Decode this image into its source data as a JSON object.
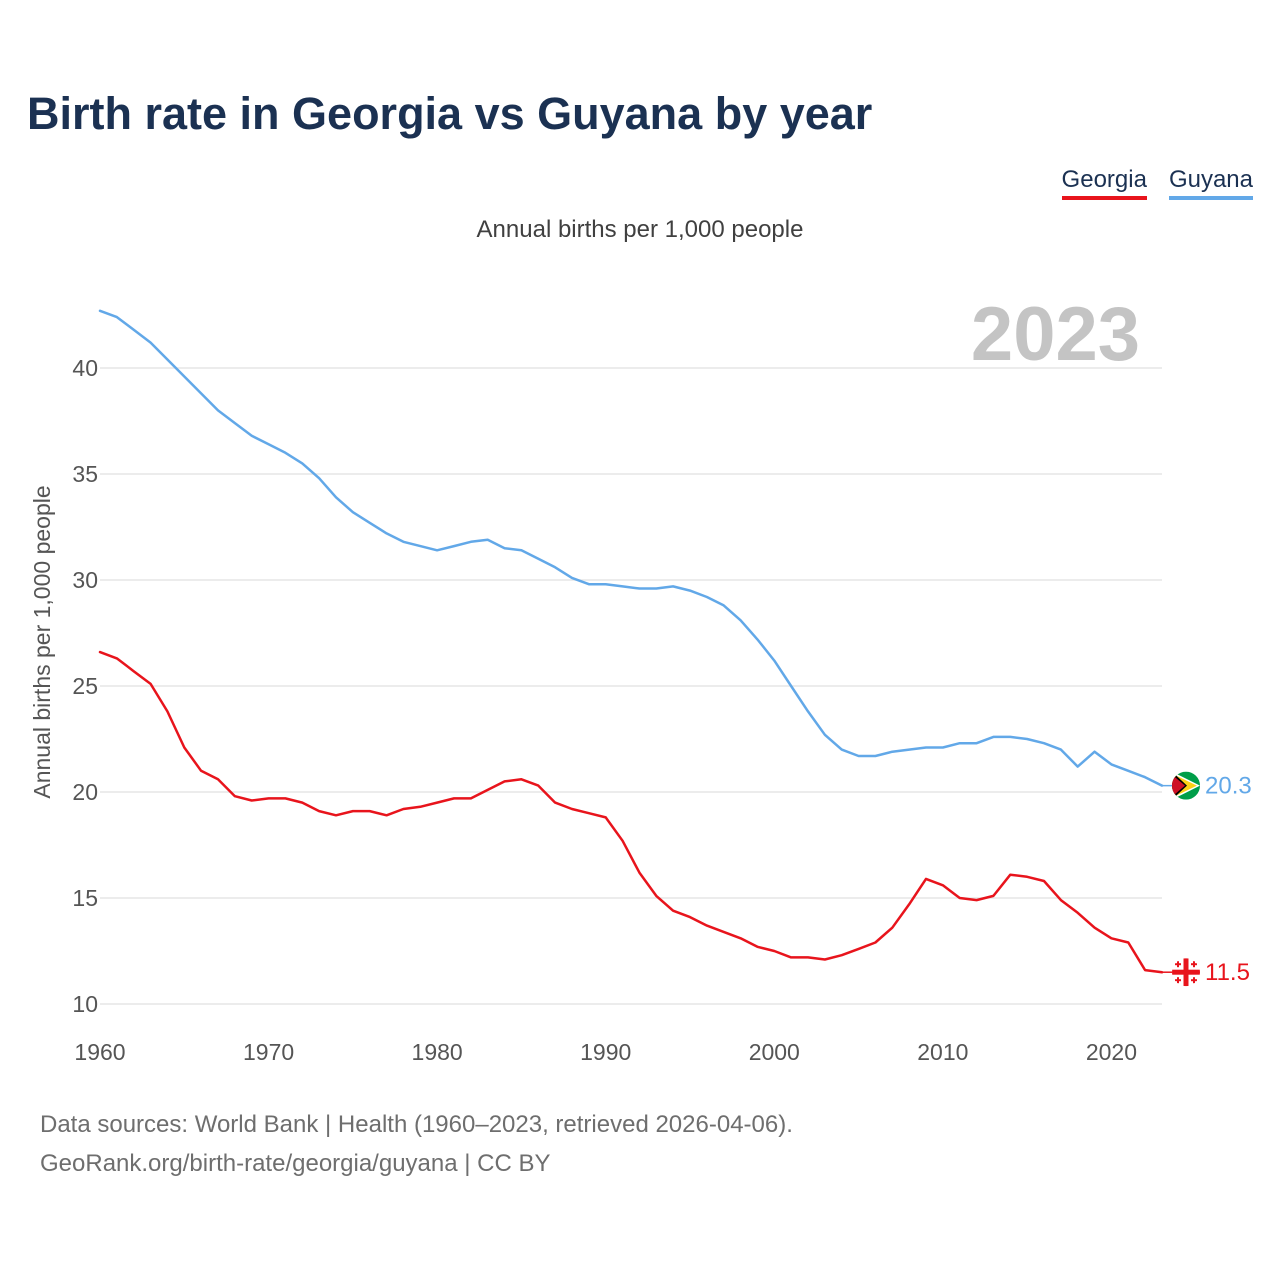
{
  "title": "Birth rate in Georgia vs Guyana by year",
  "subtitle": "Annual births per 1,000 people",
  "legend": [
    {
      "label": "Georgia",
      "color": "#e8141c"
    },
    {
      "label": "Guyana",
      "color": "#62a8e8"
    }
  ],
  "year_label": "2023",
  "footer": {
    "line1": "Data sources: World Bank | Health (1960–2023, retrieved 2026-04-06).",
    "line2": "GeoRank.org/birth-rate/georgia/guyana | CC BY"
  },
  "chart_data": {
    "type": "line",
    "title": "Birth rate in Georgia vs Guyana by year",
    "ylabel": "Annual births per 1,000 people",
    "xlabel": "",
    "xlim": [
      1960,
      2023
    ],
    "ylim": [
      10,
      43
    ],
    "yticks": [
      10,
      15,
      20,
      25,
      30,
      35,
      40
    ],
    "xticks": [
      1960,
      1970,
      1980,
      1990,
      2000,
      2010,
      2020
    ],
    "grid": true,
    "x": [
      1960,
      1961,
      1962,
      1963,
      1964,
      1965,
      1966,
      1967,
      1968,
      1969,
      1970,
      1971,
      1972,
      1973,
      1974,
      1975,
      1976,
      1977,
      1978,
      1979,
      1980,
      1981,
      1982,
      1983,
      1984,
      1985,
      1986,
      1987,
      1988,
      1989,
      1990,
      1991,
      1992,
      1993,
      1994,
      1995,
      1996,
      1997,
      1998,
      1999,
      2000,
      2001,
      2002,
      2003,
      2004,
      2005,
      2006,
      2007,
      2008,
      2009,
      2010,
      2011,
      2012,
      2013,
      2014,
      2015,
      2016,
      2017,
      2018,
      2019,
      2020,
      2021,
      2022,
      2023
    ],
    "series": [
      {
        "name": "Georgia",
        "color": "#e8141c",
        "end_label": "11.5",
        "values": [
          26.6,
          26.3,
          25.7,
          25.1,
          23.8,
          22.1,
          21.0,
          20.6,
          19.8,
          19.6,
          19.7,
          19.7,
          19.5,
          19.1,
          18.9,
          19.1,
          19.1,
          18.9,
          19.2,
          19.3,
          19.5,
          19.7,
          19.7,
          20.1,
          20.5,
          20.6,
          20.3,
          19.5,
          19.2,
          19.0,
          18.8,
          17.7,
          16.2,
          15.1,
          14.4,
          14.1,
          13.7,
          13.4,
          13.1,
          12.7,
          12.5,
          12.2,
          12.2,
          12.1,
          12.3,
          12.6,
          12.9,
          13.6,
          14.7,
          15.9,
          15.6,
          15.0,
          14.9,
          15.1,
          16.1,
          16.0,
          15.8,
          14.9,
          14.3,
          13.6,
          13.1,
          12.9,
          11.6,
          11.5
        ]
      },
      {
        "name": "Guyana",
        "color": "#62a8e8",
        "end_label": "20.3",
        "values": [
          42.7,
          42.4,
          41.8,
          41.2,
          40.4,
          39.6,
          38.8,
          38.0,
          37.4,
          36.8,
          36.4,
          36.0,
          35.5,
          34.8,
          33.9,
          33.2,
          32.7,
          32.2,
          31.8,
          31.6,
          31.4,
          31.6,
          31.8,
          31.9,
          31.5,
          31.4,
          31.0,
          30.6,
          30.1,
          29.8,
          29.8,
          29.7,
          29.6,
          29.6,
          29.7,
          29.5,
          29.2,
          28.8,
          28.1,
          27.2,
          26.2,
          25.0,
          23.8,
          22.7,
          22.0,
          21.7,
          21.7,
          21.9,
          22.0,
          22.1,
          22.1,
          22.3,
          22.3,
          22.6,
          22.6,
          22.5,
          22.3,
          22.0,
          21.2,
          21.9,
          21.3,
          21.0,
          20.7,
          20.3
        ]
      }
    ]
  }
}
